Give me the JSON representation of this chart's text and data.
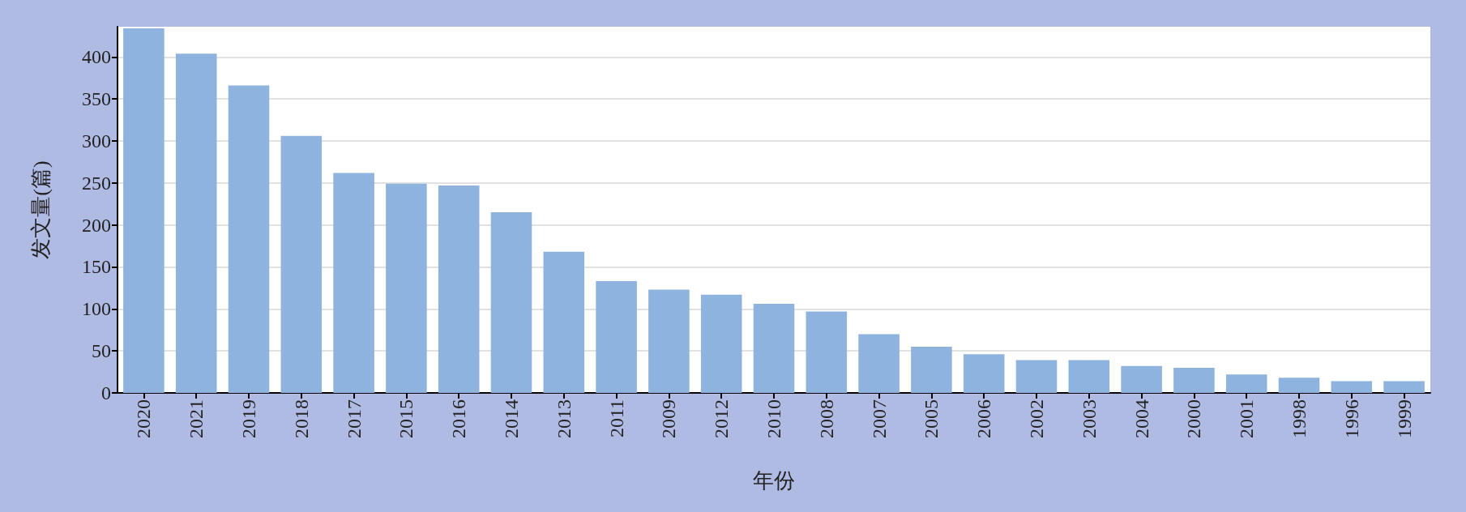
{
  "chart_data": {
    "type": "bar",
    "xlabel": "年份",
    "ylabel": "发文量(篇)",
    "categories": [
      "2020",
      "2021",
      "2019",
      "2018",
      "2017",
      "2015",
      "2016",
      "2014",
      "2013",
      "2011",
      "2009",
      "2012",
      "2010",
      "2008",
      "2007",
      "2005",
      "2006",
      "2002",
      "2003",
      "2004",
      "2000",
      "2001",
      "1998",
      "1996",
      "1999"
    ],
    "values": [
      434,
      404,
      366,
      306,
      262,
      249,
      247,
      215,
      168,
      133,
      123,
      117,
      106,
      97,
      70,
      55,
      46,
      39,
      39,
      32,
      30,
      22,
      18,
      14,
      14
    ],
    "color": "#8eb3de",
    "ylim": [
      0,
      436
    ],
    "yticks": [
      0,
      50,
      100,
      150,
      200,
      250,
      300,
      350,
      400
    ],
    "grid": "y"
  }
}
